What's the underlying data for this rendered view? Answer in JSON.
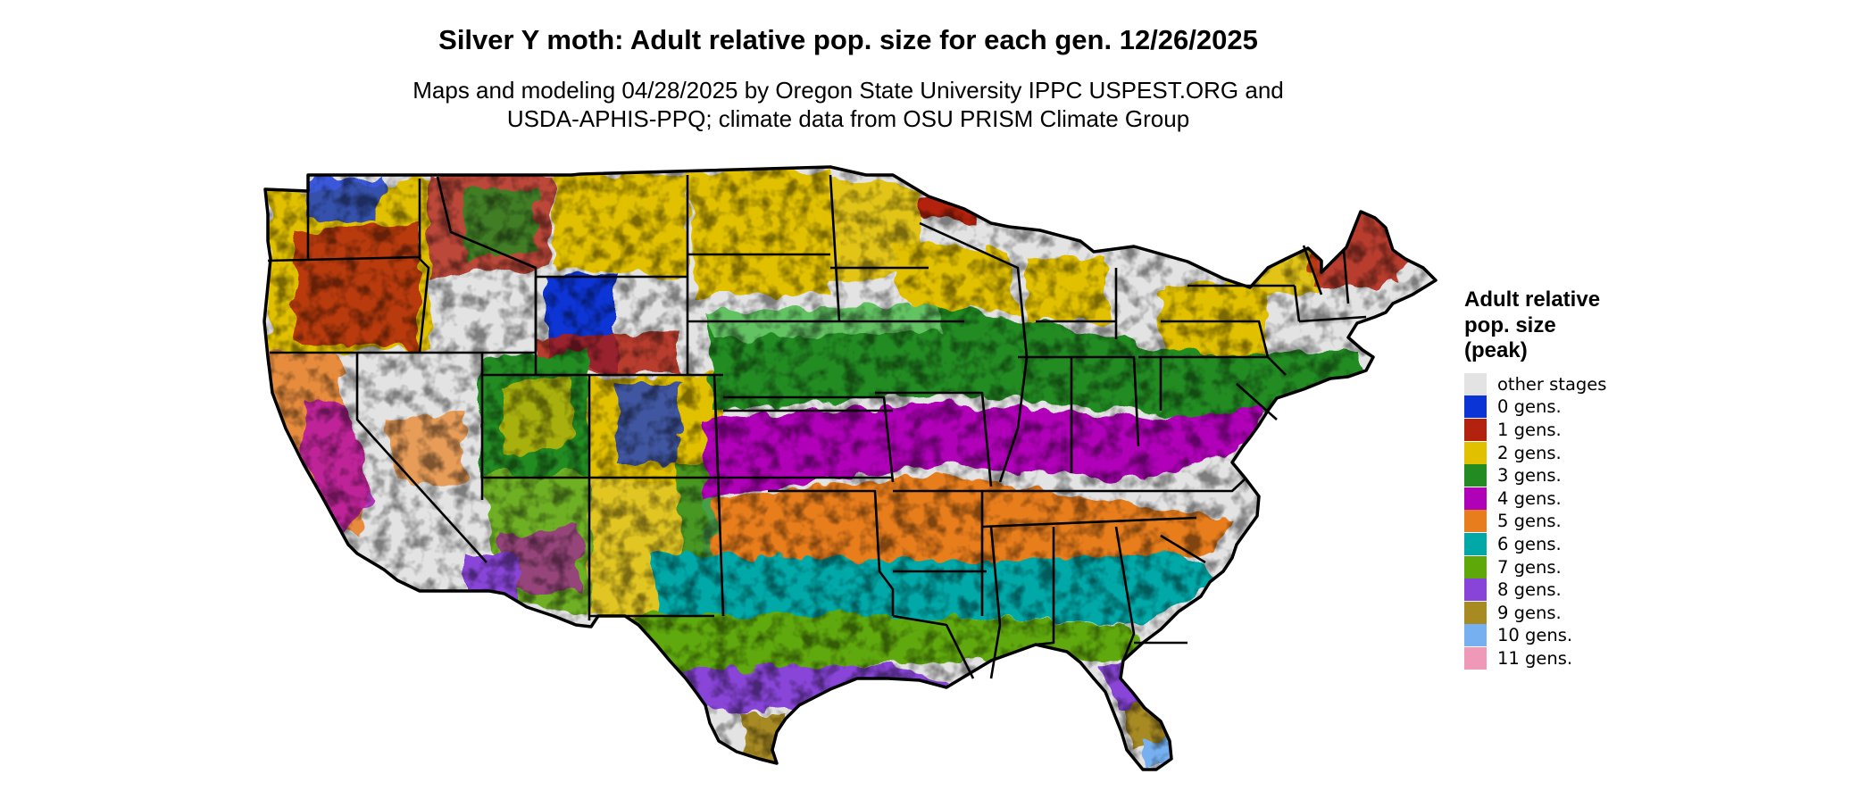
{
  "title": "Silver Y moth: Adult relative pop. size for each gen. 12/26/2025",
  "subtitle_line1": "Maps and modeling 04/28/2025 by Oregon State University IPPC USPEST.ORG and",
  "subtitle_line2": "USDA-APHIS-PPQ; climate data from OSU PRISM Climate Group",
  "legend": {
    "title_line1": "Adult relative",
    "title_line2": "pop. size",
    "title_line3": "(peak)",
    "items": [
      {
        "label": "other stages",
        "color": "#e3e3e3"
      },
      {
        "label": "0 gens.",
        "color": "#0a34d6"
      },
      {
        "label": "1 gens.",
        "color": "#b2220f"
      },
      {
        "label": "2 gens.",
        "color": "#e1c000"
      },
      {
        "label": "3 gens.",
        "color": "#228b22"
      },
      {
        "label": "4 gens.",
        "color": "#b000b8"
      },
      {
        "label": "5 gens.",
        "color": "#e87d1e"
      },
      {
        "label": "6 gens.",
        "color": "#00a8a8"
      },
      {
        "label": "7 gens.",
        "color": "#5fa80a"
      },
      {
        "label": "8 gens.",
        "color": "#8844d8"
      },
      {
        "label": "9 gens.",
        "color": "#a88a22"
      },
      {
        "label": "10 gens.",
        "color": "#76b0f0"
      },
      {
        "label": "11 gens.",
        "color": "#f098b8"
      }
    ]
  }
}
